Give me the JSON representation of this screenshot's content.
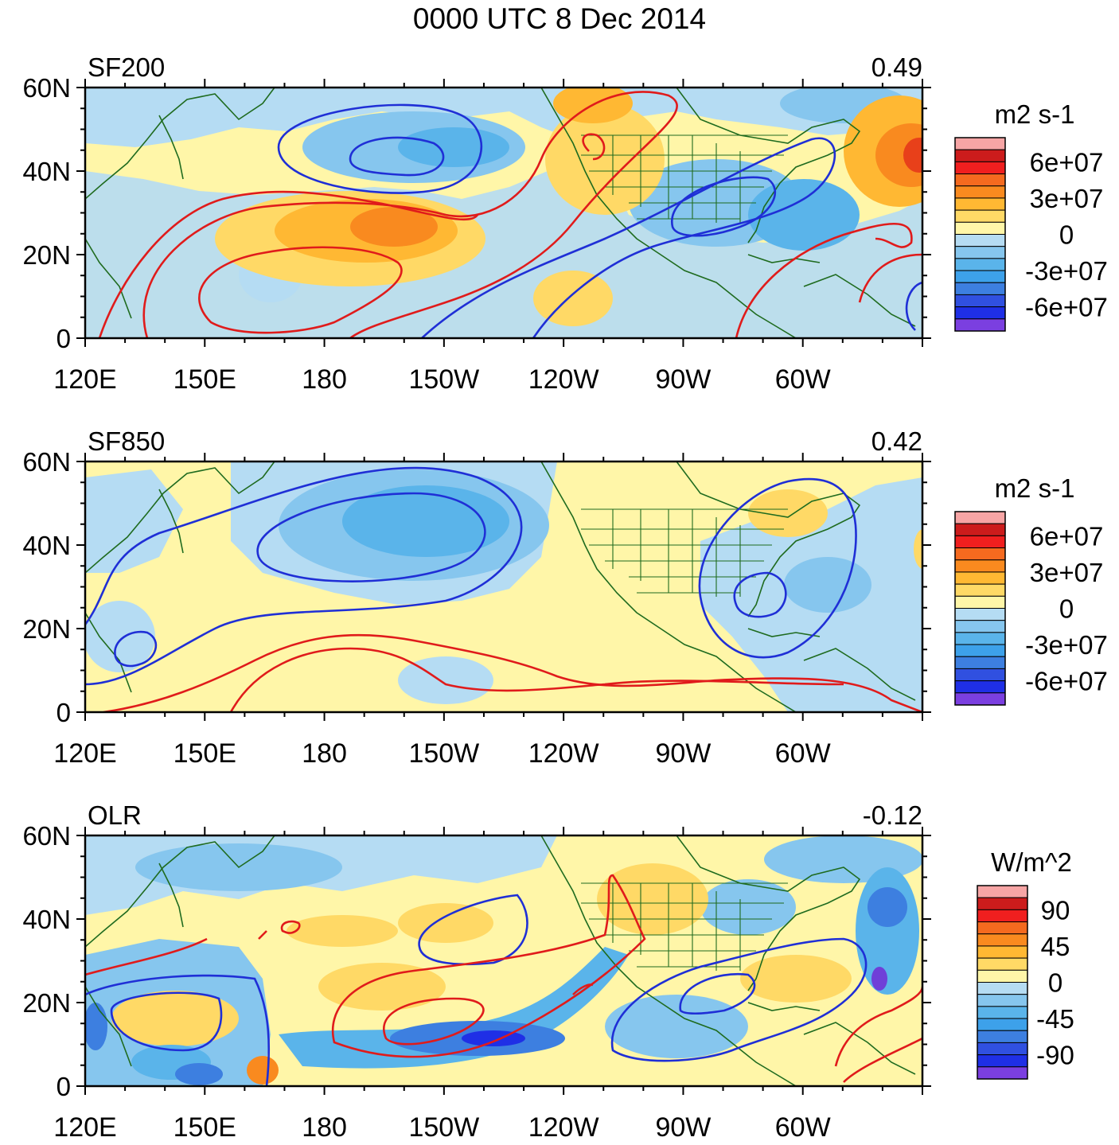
{
  "title": "0000 UTC 8 Dec 2014",
  "x_tick_labels": [
    "120E",
    "150E",
    "180",
    "150W",
    "120W",
    "90W",
    "60W"
  ],
  "y_tick_labels": [
    "60N",
    "40N",
    "20N",
    "0"
  ],
  "colors": {
    "map_outline": "#1f6b1f",
    "positive_contour": "#e01b1b",
    "negative_contour": "#1f2fd6"
  },
  "panels": [
    {
      "name": "SF200",
      "value": "0.49",
      "unit": "m2 s-1",
      "colorbar_labels": [
        "6e+07",
        "3e+07",
        "0",
        "-3e+07",
        "-6e+07"
      ]
    },
    {
      "name": "SF850",
      "value": "0.42",
      "unit": "m2 s-1",
      "colorbar_labels": [
        "6e+07",
        "3e+07",
        "0",
        "-3e+07",
        "-6e+07"
      ]
    },
    {
      "name": "OLR",
      "value": "-0.12",
      "unit": "W/m^2",
      "colorbar_labels": [
        "90",
        "45",
        "0",
        "-45",
        "-90"
      ]
    }
  ]
}
